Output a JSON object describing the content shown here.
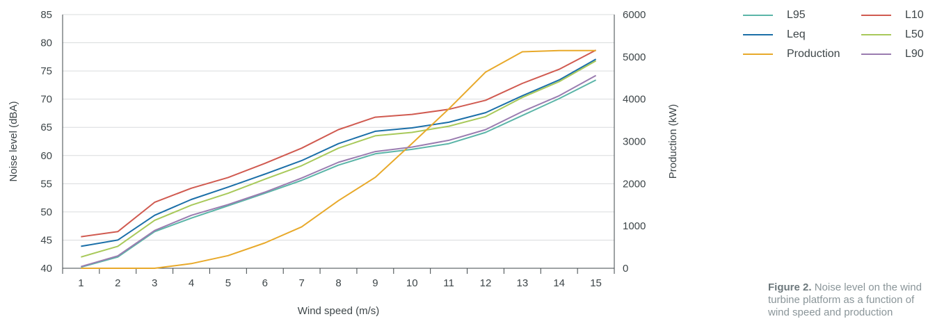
{
  "chart_data": {
    "type": "line",
    "x": [
      1,
      2,
      3,
      4,
      5,
      6,
      7,
      8,
      9,
      10,
      11,
      12,
      13,
      14,
      15
    ],
    "xlabel": "Wind speed (m/s)",
    "ylabel_left": "Noise level (dBA)",
    "ylabel_right": "Production (kW)",
    "ylim_left": [
      40,
      85
    ],
    "yticks_left": [
      40,
      45,
      50,
      55,
      60,
      65,
      70,
      75,
      80,
      85
    ],
    "ylim_right": [
      0,
      6000
    ],
    "yticks_right": [
      0,
      1000,
      2000,
      3000,
      4000,
      5000,
      6000
    ],
    "grid": "horizontal",
    "legend_placement": "right",
    "series": [
      {
        "name": "L95",
        "axis": "left",
        "color": "#5bb5a8",
        "values": [
          40.2,
          42.0,
          46.5,
          48.9,
          51.1,
          53.3,
          55.6,
          58.3,
          60.3,
          61.1,
          62.1,
          64.1,
          67.1,
          70.1,
          73.4
        ]
      },
      {
        "name": "L10",
        "axis": "left",
        "color": "#d05a50",
        "values": [
          45.6,
          46.5,
          51.7,
          54.2,
          56.1,
          58.6,
          61.3,
          64.6,
          66.8,
          67.3,
          68.2,
          69.8,
          72.8,
          75.3,
          78.7
        ]
      },
      {
        "name": "Leq",
        "axis": "left",
        "color": "#1b6fa8",
        "values": [
          43.9,
          45.0,
          49.4,
          52.2,
          54.4,
          56.7,
          59.1,
          62.1,
          64.3,
          64.9,
          65.9,
          67.6,
          70.6,
          73.4,
          77.1
        ]
      },
      {
        "name": "L50",
        "axis": "left",
        "color": "#a8c95a",
        "values": [
          42.0,
          43.9,
          48.5,
          51.2,
          53.3,
          55.8,
          58.2,
          61.3,
          63.5,
          64.1,
          65.2,
          66.9,
          70.3,
          73.1,
          76.8
        ]
      },
      {
        "name": "Production",
        "axis": "right",
        "color": "#e8a92a",
        "values": [
          0,
          0,
          0,
          110,
          300,
          600,
          980,
          1600,
          2150,
          2950,
          3770,
          4640,
          5120,
          5150,
          5150
        ]
      },
      {
        "name": "L90",
        "axis": "left",
        "color": "#9a7cb0",
        "values": [
          40.3,
          42.2,
          46.7,
          49.4,
          51.3,
          53.5,
          56.0,
          58.8,
          60.7,
          61.5,
          62.7,
          64.6,
          67.8,
          70.6,
          74.2
        ]
      }
    ]
  },
  "legend": {
    "items": [
      {
        "label": "L95",
        "color": "#5bb5a8"
      },
      {
        "label": "L10",
        "color": "#d05a50"
      },
      {
        "label": "Leq",
        "color": "#1b6fa8"
      },
      {
        "label": "L50",
        "color": "#a8c95a"
      },
      {
        "label": "Production",
        "color": "#e8a92a"
      },
      {
        "label": "L90",
        "color": "#9a7cb0"
      }
    ]
  },
  "caption": {
    "bold": "Figure 2.",
    "text": "Noise level on the wind turbine platform as a function of wind speed and production"
  }
}
